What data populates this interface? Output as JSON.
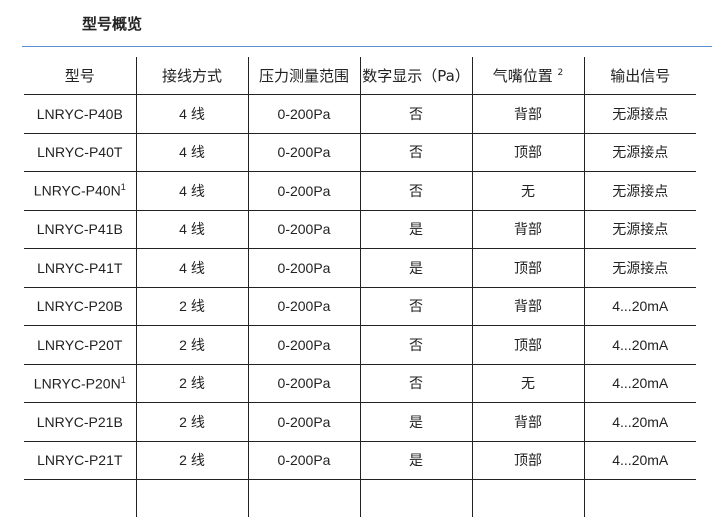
{
  "title": "型号概览",
  "headers": [
    "型号",
    "接线方式",
    "压力测量范围",
    "数字显示（Pa）",
    "气嘴位置",
    "输出信号"
  ],
  "header_sup": {
    "4": "2"
  },
  "rows": [
    {
      "model": "LNRYC-P40B",
      "sup": "",
      "wiring": "4 线",
      "range": "0-200Pa",
      "display": "否",
      "nozzle": "背部",
      "output": "无源接点"
    },
    {
      "model": "LNRYC-P40T",
      "sup": "",
      "wiring": "4 线",
      "range": "0-200Pa",
      "display": "否",
      "nozzle": "顶部",
      "output": "无源接点"
    },
    {
      "model": "LNRYC-P40N",
      "sup": "1",
      "wiring": "4 线",
      "range": "0-200Pa",
      "display": "否",
      "nozzle": "无",
      "output": "无源接点"
    },
    {
      "model": "LNRYC-P41B",
      "sup": "",
      "wiring": "4 线",
      "range": "0-200Pa",
      "display": "是",
      "nozzle": "背部",
      "output": "无源接点"
    },
    {
      "model": "LNRYC-P41T",
      "sup": "",
      "wiring": "4 线",
      "range": "0-200Pa",
      "display": "是",
      "nozzle": "顶部",
      "output": "无源接点"
    },
    {
      "model": "LNRYC-P20B",
      "sup": "",
      "wiring": "2 线",
      "range": "0-200Pa",
      "display": "否",
      "nozzle": "背部",
      "output": "4...20mA"
    },
    {
      "model": "LNRYC-P20T",
      "sup": "",
      "wiring": "2 线",
      "range": "0-200Pa",
      "display": "否",
      "nozzle": "顶部",
      "output": "4...20mA"
    },
    {
      "model": "LNRYC-P20N",
      "sup": "1",
      "wiring": "2 线",
      "range": "0-200Pa",
      "display": "否",
      "nozzle": "无",
      "output": "4...20mA"
    },
    {
      "model": "LNRYC-P21B",
      "sup": "",
      "wiring": "2 线",
      "range": "0-200Pa",
      "display": "是",
      "nozzle": "背部",
      "output": "4...20mA"
    },
    {
      "model": "LNRYC-P21T",
      "sup": "",
      "wiring": "2 线",
      "range": "0-200Pa",
      "display": "是",
      "nozzle": "顶部",
      "output": "4...20mA"
    }
  ]
}
